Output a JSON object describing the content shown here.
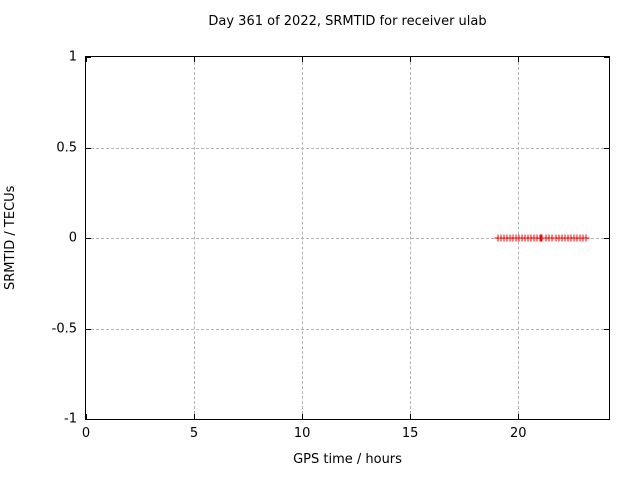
{
  "chart_data": {
    "type": "scatter",
    "title": "Day 361 of 2022, SRMTID for receiver ulab",
    "xlabel": "GPS time / hours",
    "ylabel": "SRMTID / TECUs",
    "xlim": [
      0,
      24.2
    ],
    "ylim": [
      -1,
      1
    ],
    "x_ticks": [
      0,
      5,
      10,
      15,
      20
    ],
    "x_tick_labels": [
      "0",
      "5",
      "10",
      "15",
      "20"
    ],
    "y_ticks": [
      -1,
      -0.5,
      0,
      0.5,
      1
    ],
    "y_tick_labels": [
      "-1",
      "-0.5",
      "0",
      "0.5",
      "1"
    ],
    "grid": true,
    "legend": false,
    "series": [
      {
        "name": "SRMTID",
        "marker": "plus",
        "color": "#ff0000",
        "x": [
          19.08,
          19.22,
          19.35,
          19.49,
          19.63,
          19.77,
          19.91,
          20.05,
          20.18,
          20.32,
          20.46,
          20.6,
          20.74,
          20.88,
          21.01,
          21.06,
          21.09,
          21.12,
          21.29,
          21.43,
          21.57,
          21.75,
          21.89,
          22.03,
          22.17,
          22.3,
          22.44,
          22.58,
          22.72,
          22.86,
          23.0,
          23.13
        ],
        "y_value": 0
      }
    ]
  },
  "colors": {
    "background": "#ffffff",
    "axis": "#000000",
    "grid": "#b3b3b3",
    "marker": "#ff0000",
    "text": "#000000"
  }
}
